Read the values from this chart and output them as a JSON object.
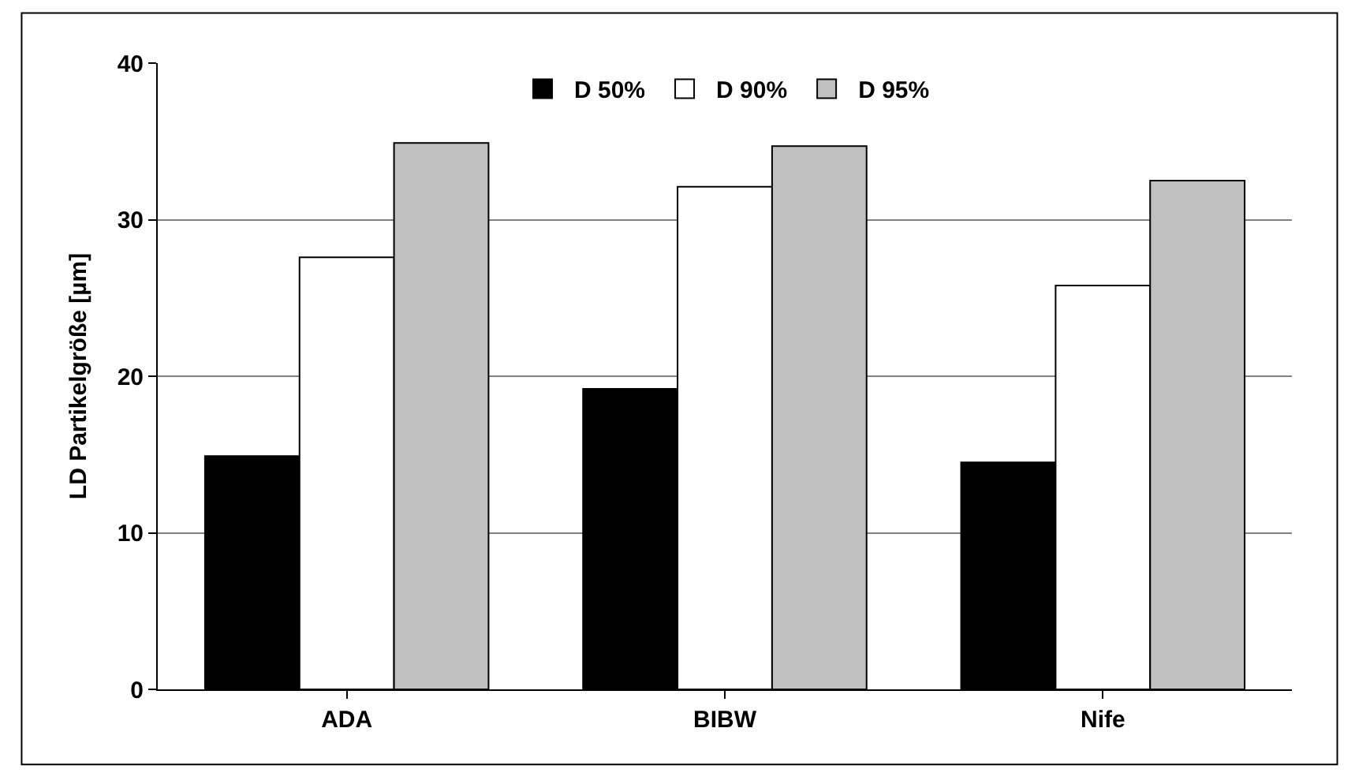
{
  "chart_data": {
    "type": "bar",
    "ylabel": "LD Partikelgröße [µm]",
    "categories": [
      "ADA",
      "BIBW",
      "Nife"
    ],
    "series": [
      {
        "name": "D 50%",
        "color": "#000000",
        "values": [
          14.9,
          19.2,
          14.5
        ]
      },
      {
        "name": "D 90%",
        "color": "#ffffff",
        "values": [
          27.6,
          32.1,
          25.8
        ]
      },
      {
        "name": "D 95%",
        "color": "#c0c0c0",
        "values": [
          34.9,
          34.7,
          32.5
        ]
      }
    ],
    "ylim": [
      0,
      40
    ],
    "yticks": [
      0,
      10,
      20,
      30,
      40
    ],
    "grid": "y",
    "legend": "top"
  }
}
